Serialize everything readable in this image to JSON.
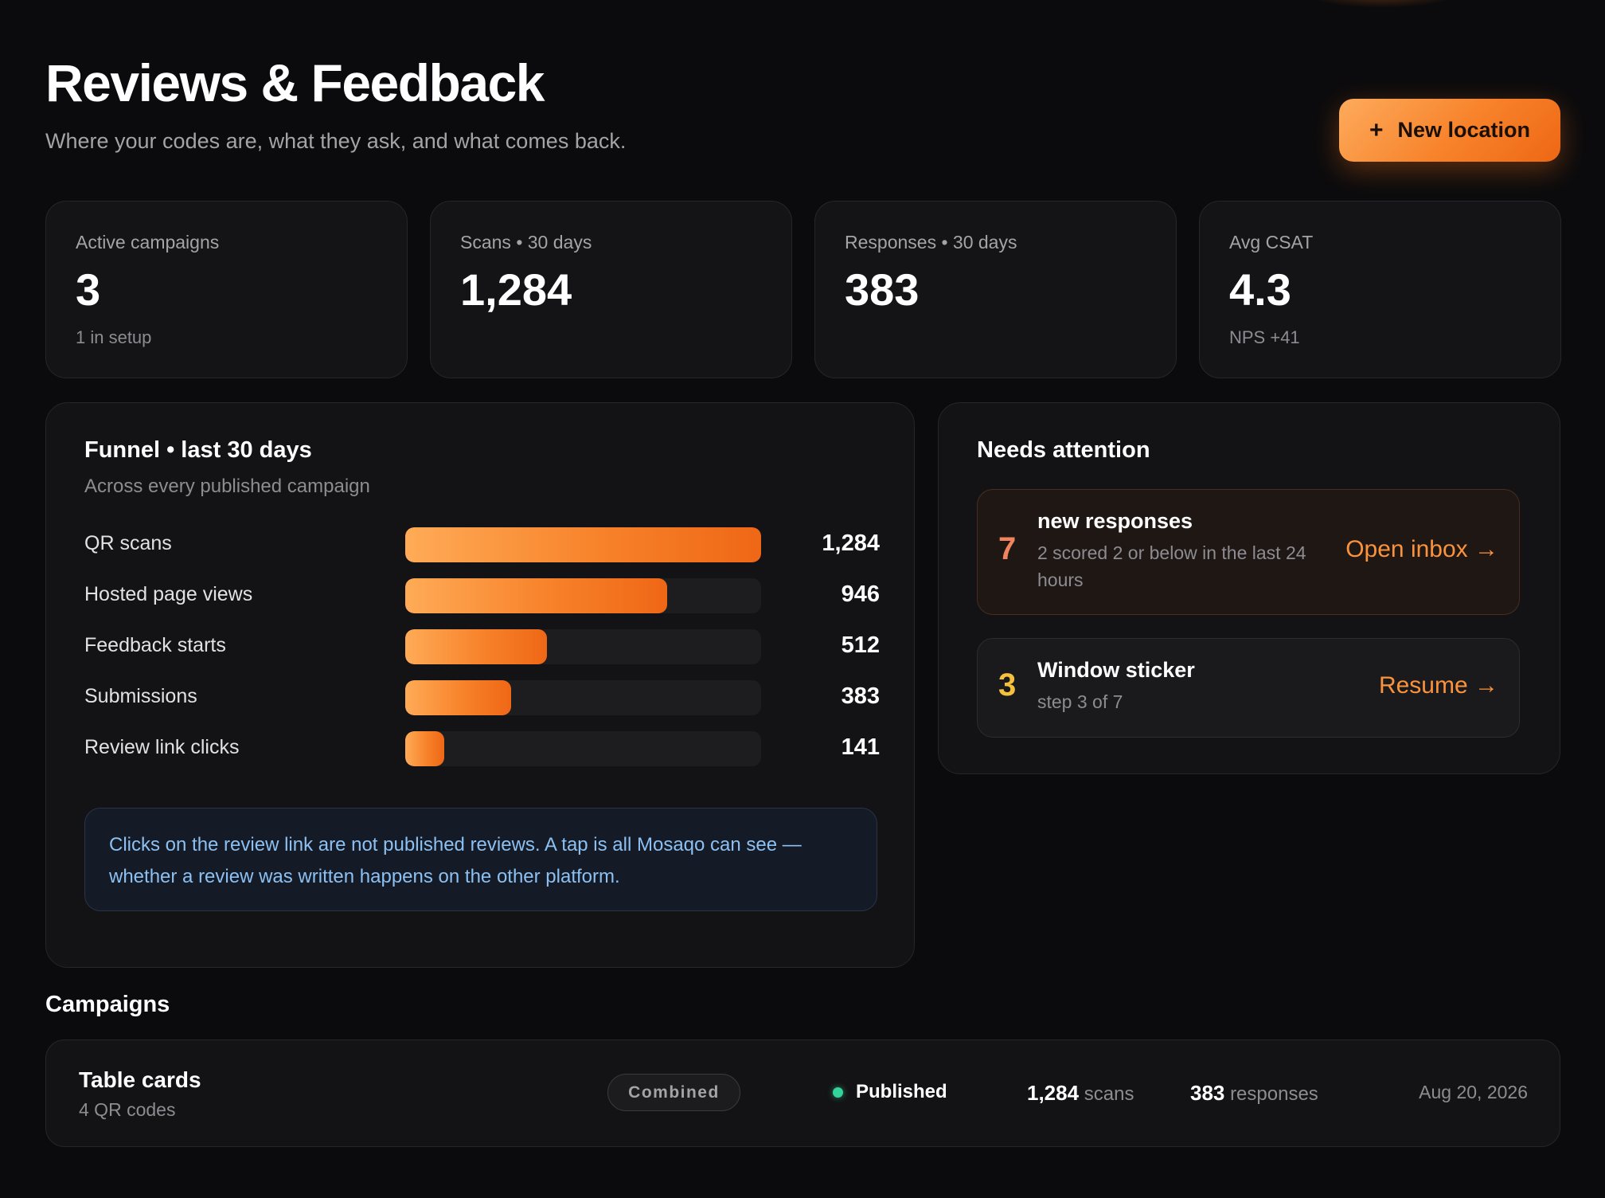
{
  "header": {
    "title": "Reviews & Feedback",
    "subtitle": "Where your codes are, what they ask, and what comes back.",
    "new_button_icon": "plus-icon",
    "new_button_label": "New location"
  },
  "stats": [
    {
      "label": "Active campaigns",
      "value": "3",
      "note": "1 in setup"
    },
    {
      "label": "Scans • 30 days",
      "value": "1,284",
      "note": ""
    },
    {
      "label": "Responses • 30 days",
      "value": "383",
      "note": ""
    },
    {
      "label": "Avg CSAT",
      "value": "4.3",
      "note": "NPS +41"
    }
  ],
  "funnel": {
    "title": "Funnel • last 30 days",
    "subtitle": "Across every published campaign",
    "max": 1284,
    "rows": [
      {
        "label": "QR scans",
        "value": 1284,
        "display": "1,284"
      },
      {
        "label": "Hosted page views",
        "value": 946,
        "display": "946"
      },
      {
        "label": "Feedback starts",
        "value": 512,
        "display": "512"
      },
      {
        "label": "Submissions",
        "value": 383,
        "display": "383"
      },
      {
        "label": "Review link clicks",
        "value": 141,
        "display": "141"
      }
    ],
    "note": "Clicks on the review link are not published reviews. A tap is all Mosaqo can see — whether a review was written happens on the other platform."
  },
  "attention": {
    "title": "Needs attention",
    "items": [
      {
        "count": "7",
        "title": "new responses",
        "description": "2 scored 2 or below in the last 24 hours",
        "action": "Open inbox →",
        "count_color": "#f0845e"
      },
      {
        "count": "3",
        "title": "Window sticker",
        "description": "step 3 of 7",
        "action": "Resume →",
        "count_color": "#f5c03c"
      }
    ]
  },
  "campaigns": {
    "heading": "Campaigns",
    "rows": [
      {
        "name": "Table cards",
        "codes": "4 QR codes",
        "type": "Combined",
        "status": "Published",
        "status_color": "#34d399",
        "scans": "1,284",
        "scans_unit": "scans",
        "responses": "383",
        "responses_unit": "responses",
        "date": "Aug 20, 2026"
      }
    ]
  },
  "colors": {
    "accent": "#f7822a",
    "background": "#0b0b0d",
    "info": "#8cc0f2"
  }
}
